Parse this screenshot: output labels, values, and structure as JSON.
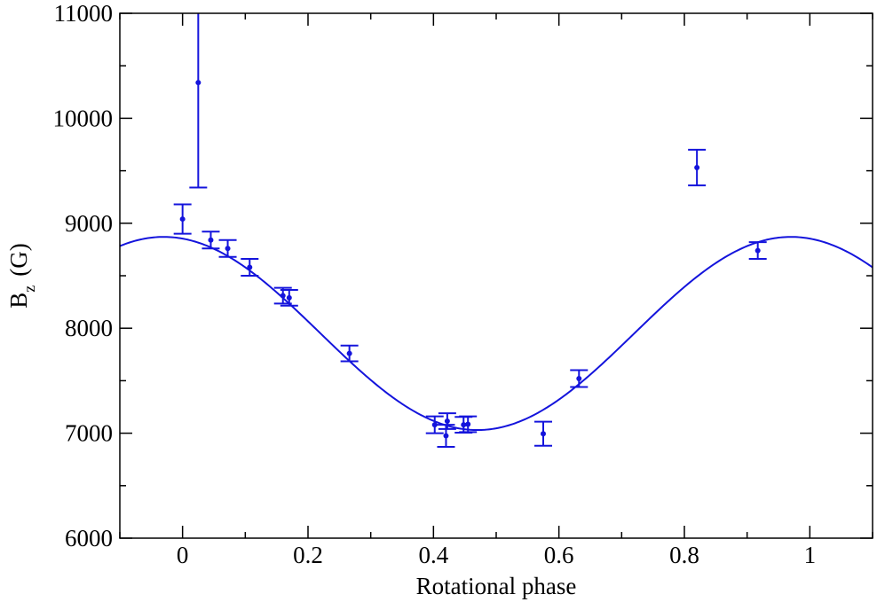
{
  "chart_data": {
    "type": "scatter",
    "title": "",
    "xlabel": "Rotational phase",
    "ylabel": {
      "main": "B",
      "sub": "z",
      "unit": "(G)"
    },
    "xlim": [
      -0.1,
      1.1
    ],
    "ylim": [
      6000,
      11000
    ],
    "xticks": [
      0,
      0.2,
      0.4,
      0.6,
      0.8,
      1
    ],
    "xtick_labels": [
      "0",
      "0.2",
      "0.4",
      "0.6",
      "0.8",
      "1"
    ],
    "yticks": [
      6000,
      7000,
      8000,
      9000,
      10000,
      11000
    ],
    "ytick_labels": [
      "6000",
      "7000",
      "8000",
      "9000",
      "10000",
      "11000"
    ],
    "grid": false,
    "color": "#1414dc",
    "series": [
      {
        "kind": "errorbar",
        "x": [
          0.0,
          0.025,
          0.045,
          0.072,
          0.107,
          0.16,
          0.17,
          0.266,
          0.402,
          0.42,
          0.422,
          0.448,
          0.455,
          0.575,
          0.632,
          0.82,
          0.917
        ],
        "y": [
          9040,
          10340,
          8840,
          8760,
          8580,
          8310,
          8290,
          7760,
          7080,
          6975,
          7115,
          7080,
          7085,
          6995,
          7520,
          9530,
          8740
        ],
        "yerr": [
          140,
          1000,
          80,
          80,
          80,
          75,
          75,
          75,
          80,
          105,
          75,
          75,
          75,
          115,
          80,
          170,
          80
        ]
      },
      {
        "kind": "fit-curve",
        "function": "sine",
        "offset": 7950,
        "amplitude": 920,
        "max_phase": -0.03,
        "period": 1.0
      }
    ]
  }
}
